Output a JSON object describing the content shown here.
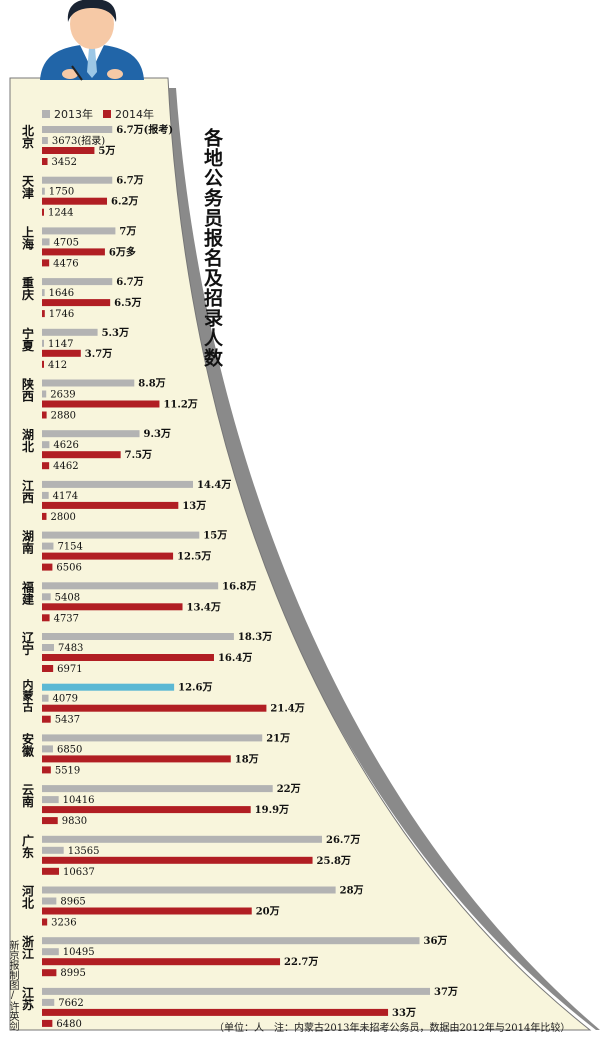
{
  "title": "各地公务员报名及招录人数",
  "legend": {
    "s2013": "2013年",
    "s2014": "2014年"
  },
  "colors": {
    "s2013": "#b3b3b3",
    "s2014": "#b11e23",
    "highlight": "#5bb8d4",
    "paper": "#f8f5dc"
  },
  "credit": "新京报制图/许英剑",
  "note": "（单位：人　注：内蒙古2013年未招考公务员，数据由2012年与2014年比较）",
  "chart_data": {
    "type": "bar",
    "orientation": "horizontal",
    "title": "各地公务员报名及招录人数",
    "unit": "人",
    "series": [
      {
        "name": "2013年",
        "measure": "报考"
      },
      {
        "name": "2014年",
        "measure": "报考"
      },
      {
        "name": "2014年",
        "measure": "招录"
      }
    ],
    "regions": [
      {
        "name": "北京",
        "apply_2013": 67000,
        "apply_2013_label": "6.7万(报考)",
        "admit_a": 3673,
        "admit_a_label": "3673(招录)",
        "apply_2014": 50000,
        "apply_2014_label": "5万",
        "admit_b": 3452,
        "admit_b_label": "3452"
      },
      {
        "name": "天津",
        "apply_2013": 67000,
        "apply_2013_label": "6.7万",
        "admit_a": 1750,
        "admit_a_label": "1750",
        "apply_2014": 62000,
        "apply_2014_label": "6.2万",
        "admit_b": 1244,
        "admit_b_label": "1244"
      },
      {
        "name": "上海",
        "apply_2013": 70000,
        "apply_2013_label": "7万",
        "admit_a": 4705,
        "admit_a_label": "4705",
        "apply_2014": 60000,
        "apply_2014_label": "6万多",
        "admit_b": 4476,
        "admit_b_label": "4476"
      },
      {
        "name": "重庆",
        "apply_2013": 67000,
        "apply_2013_label": "6.7万",
        "admit_a": 1646,
        "admit_a_label": "1646",
        "apply_2014": 65000,
        "apply_2014_label": "6.5万",
        "admit_b": 1746,
        "admit_b_label": "1746"
      },
      {
        "name": "宁夏",
        "apply_2013": 53000,
        "apply_2013_label": "5.3万",
        "admit_a": 1147,
        "admit_a_label": "1147",
        "apply_2014": 37000,
        "apply_2014_label": "3.7万",
        "admit_b": 412,
        "admit_b_label": "412"
      },
      {
        "name": "陕西",
        "apply_2013": 88000,
        "apply_2013_label": "8.8万",
        "admit_a": 2639,
        "admit_a_label": "2639",
        "apply_2014": 112000,
        "apply_2014_label": "11.2万",
        "admit_b": 2880,
        "admit_b_label": "2880"
      },
      {
        "name": "湖北",
        "apply_2013": 93000,
        "apply_2013_label": "9.3万",
        "admit_a": 4626,
        "admit_a_label": "4626",
        "apply_2014": 75000,
        "apply_2014_label": "7.5万",
        "admit_b": 4462,
        "admit_b_label": "4462"
      },
      {
        "name": "江西",
        "apply_2013": 144000,
        "apply_2013_label": "14.4万",
        "admit_a": 4174,
        "admit_a_label": "4174",
        "apply_2014": 130000,
        "apply_2014_label": "13万",
        "admit_b": 2800,
        "admit_b_label": "2800"
      },
      {
        "name": "湖南",
        "apply_2013": 150000,
        "apply_2013_label": "15万",
        "admit_a": 7154,
        "admit_a_label": "7154",
        "apply_2014": 125000,
        "apply_2014_label": "12.5万",
        "admit_b": 6506,
        "admit_b_label": "6506"
      },
      {
        "name": "福建",
        "apply_2013": 168000,
        "apply_2013_label": "16.8万",
        "admit_a": 5408,
        "admit_a_label": "5408",
        "apply_2014": 134000,
        "apply_2014_label": "13.4万",
        "admit_b": 4737,
        "admit_b_label": "4737"
      },
      {
        "name": "辽宁",
        "apply_2013": 183000,
        "apply_2013_label": "18.3万",
        "admit_a": 7483,
        "admit_a_label": "7483",
        "apply_2014": 164000,
        "apply_2014_label": "16.4万",
        "admit_b": 6971,
        "admit_b_label": "6971"
      },
      {
        "name": "内蒙古",
        "apply_2013": 126000,
        "apply_2013_label": "12.6万",
        "admit_a": 4079,
        "admit_a_label": "4079",
        "apply_2014": 214000,
        "apply_2014_label": "21.4万",
        "admit_b": 5437,
        "admit_b_label": "5437",
        "highlight": true
      },
      {
        "name": "安徽",
        "apply_2013": 210000,
        "apply_2013_label": "21万",
        "admit_a": 6850,
        "admit_a_label": "6850",
        "apply_2014": 180000,
        "apply_2014_label": "18万",
        "admit_b": 5519,
        "admit_b_label": "5519"
      },
      {
        "name": "云南",
        "apply_2013": 220000,
        "apply_2013_label": "22万",
        "admit_a": 10416,
        "admit_a_label": "10416",
        "apply_2014": 199000,
        "apply_2014_label": "19.9万",
        "admit_b": 9830,
        "admit_b_label": "9830"
      },
      {
        "name": "广东",
        "apply_2013": 267000,
        "apply_2013_label": "26.7万",
        "admit_a": 13565,
        "admit_a_label": "13565",
        "apply_2014": 258000,
        "apply_2014_label": "25.8万",
        "admit_b": 10637,
        "admit_b_label": "10637"
      },
      {
        "name": "河北",
        "apply_2013": 280000,
        "apply_2013_label": "28万",
        "admit_a": 8965,
        "admit_a_label": "8965",
        "apply_2014": 200000,
        "apply_2014_label": "20万",
        "admit_b": 3236,
        "admit_b_label": "3236"
      },
      {
        "name": "浙江",
        "apply_2013": 360000,
        "apply_2013_label": "36万",
        "admit_a": 10495,
        "admit_a_label": "10495",
        "apply_2014": 227000,
        "apply_2014_label": "22.7万",
        "admit_b": 8995,
        "admit_b_label": "8995"
      },
      {
        "name": "江苏",
        "apply_2013": 370000,
        "apply_2013_label": "37万",
        "admit_a": 7662,
        "admit_a_label": "7662",
        "apply_2014": 330000,
        "apply_2014_label": "33万",
        "admit_b": 6480,
        "admit_b_label": "6480"
      }
    ]
  }
}
